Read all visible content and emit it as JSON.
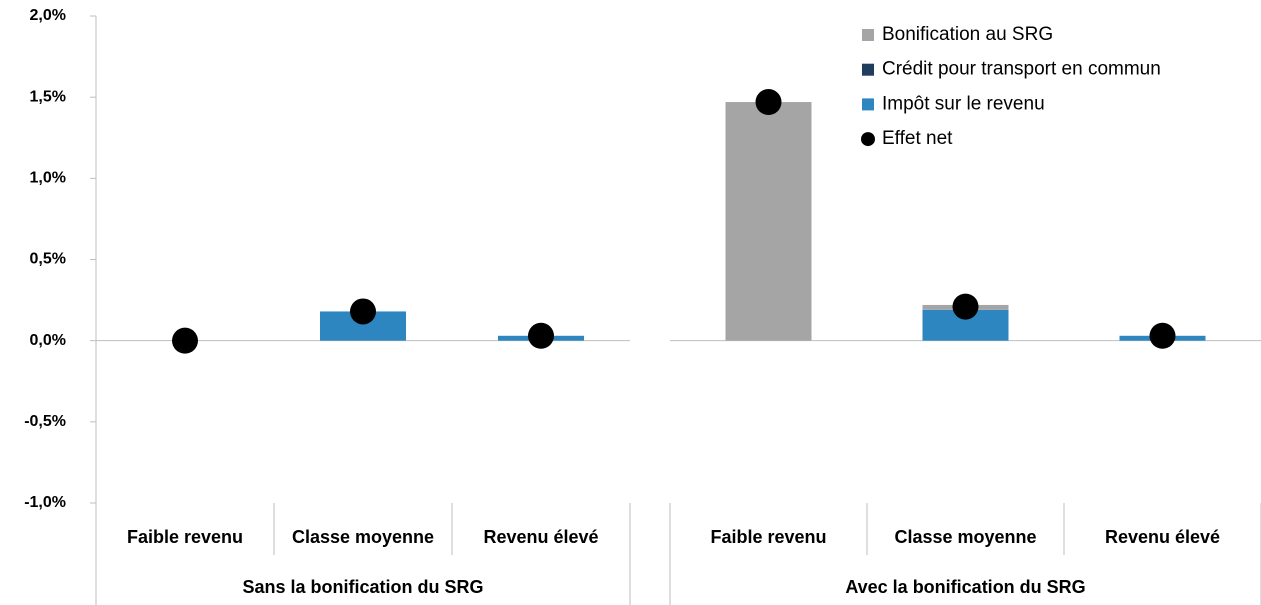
{
  "chart_data": {
    "type": "bar",
    "stacked": true,
    "groups": [
      "Sans la bonification du SRG",
      "Avec la bonification du SRG"
    ],
    "categories": [
      "Faible revenu",
      "Classe moyenne",
      "Revenu élevé",
      "Faible revenu",
      "Classe moyenne",
      "Revenu élevé"
    ],
    "series": [
      {
        "name": "Bonification au SRG",
        "color": "#a5a5a5",
        "type": "bar",
        "values": [
          0,
          0,
          0,
          1.47,
          0.03,
          0
        ]
      },
      {
        "name": "Crédit pour transport en commun",
        "color": "#1f3d5c",
        "type": "bar",
        "values": [
          0,
          0,
          0,
          0,
          0,
          0
        ]
      },
      {
        "name": "Impôt sur le revenu",
        "color": "#2e86c1",
        "type": "bar",
        "values": [
          0,
          0.18,
          0.03,
          0,
          0.19,
          0.03
        ]
      },
      {
        "name": "Effet net",
        "color": "#000000",
        "type": "scatter",
        "values": [
          0,
          0.18,
          0.03,
          1.47,
          0.21,
          0.03
        ]
      }
    ],
    "stack_order": [
      2,
      1,
      0
    ],
    "ylim": [
      -1.0,
      2.0
    ],
    "yticks": [
      {
        "value": -1.0,
        "label": "-1,0%"
      },
      {
        "value": -0.5,
        "label": "-0,5%"
      },
      {
        "value": 0,
        "label": "0,0%"
      },
      {
        "value": 0.5,
        "label": "0,5%"
      },
      {
        "value": 1.0,
        "label": "1,0%"
      },
      {
        "value": 1.5,
        "label": "1,5%"
      },
      {
        "value": 2.0,
        "label": "2,0%"
      }
    ],
    "grid": false,
    "legend": "top-right"
  }
}
